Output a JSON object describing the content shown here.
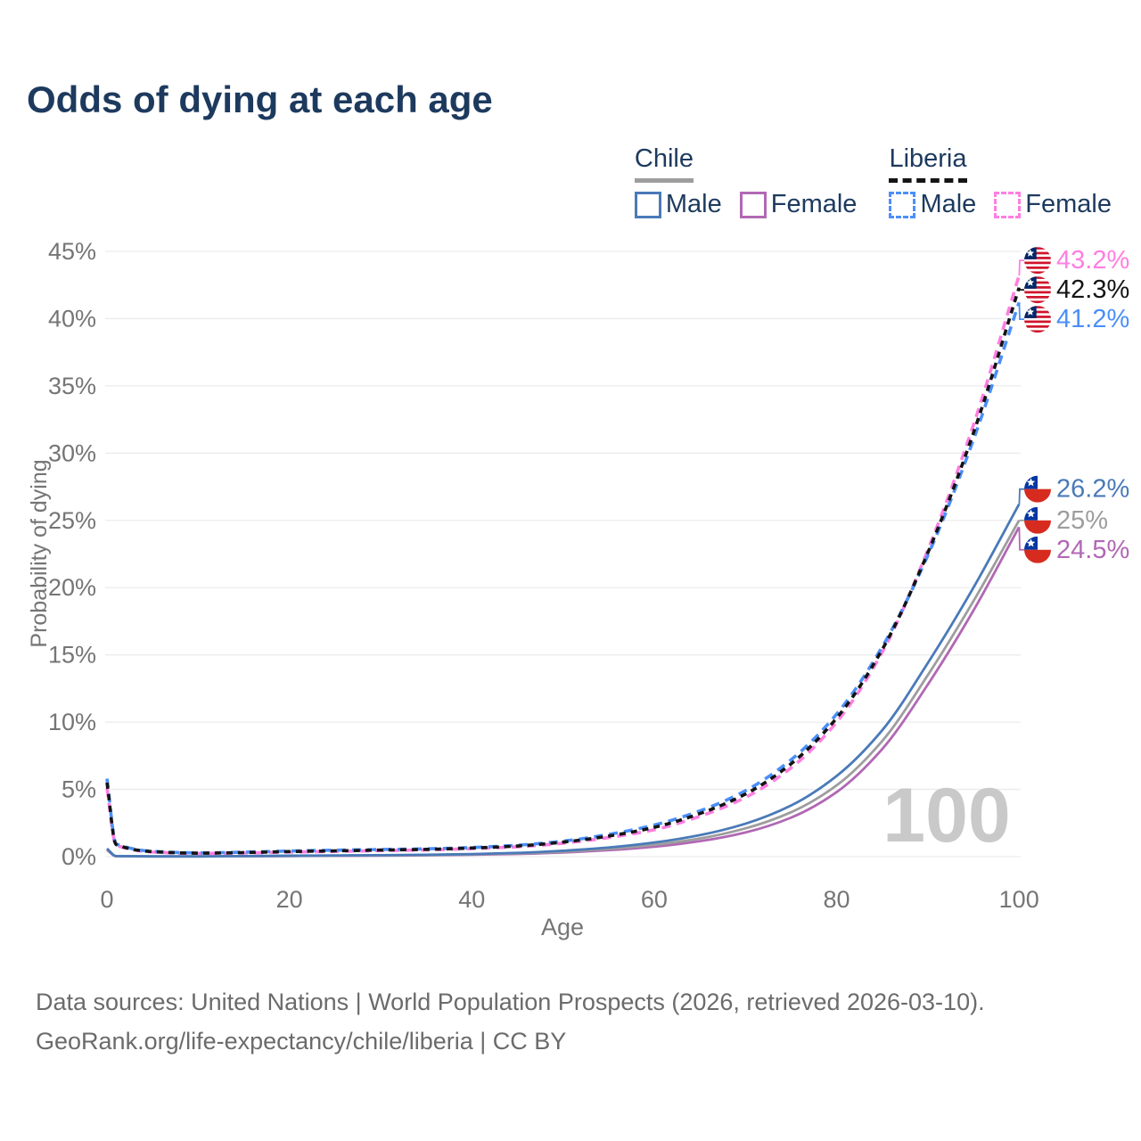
{
  "header": {
    "title": "Odds of dying at each age"
  },
  "legend": {
    "groups": [
      {
        "id": "chile",
        "label": "Chile",
        "line_style": "solid",
        "underline_color": "#9d9d9d",
        "items": [
          {
            "label": "Male",
            "color": "#4a7ab8",
            "dash": false
          },
          {
            "label": "Female",
            "color": "#b168b4",
            "dash": false
          }
        ]
      },
      {
        "id": "liberia",
        "label": "Liberia",
        "line_style": "dashed",
        "underline_color": "#141414",
        "items": [
          {
            "label": "Male",
            "color": "#4b8ff7",
            "dash": true
          },
          {
            "label": "Female",
            "color": "#ff7ee2",
            "dash": true
          }
        ]
      }
    ]
  },
  "chart_data": {
    "type": "line",
    "title": "Odds of dying at each age",
    "xlabel": "Age",
    "ylabel": "Probability of dying",
    "xlim": [
      0,
      100
    ],
    "ylim": [
      0,
      45
    ],
    "x_ticks": [
      0,
      20,
      40,
      60,
      80,
      100
    ],
    "y_ticks": [
      0,
      5,
      10,
      15,
      20,
      25,
      30,
      35,
      40,
      45
    ],
    "y_tick_suffix": "%",
    "grid": "horizontal",
    "legend_position": "top-right",
    "watermark": "100",
    "ages": [
      0,
      1,
      5,
      10,
      15,
      20,
      25,
      30,
      35,
      40,
      45,
      50,
      55,
      60,
      65,
      70,
      75,
      80,
      85,
      90,
      95,
      100
    ],
    "series": [
      {
        "name": "Chile Female",
        "country": "chile",
        "sex": "female",
        "color": "#b168b4",
        "dash": false,
        "end_label": "24.5%",
        "values": [
          0.5,
          0.03,
          0.015,
          0.015,
          0.03,
          0.045,
          0.06,
          0.08,
          0.105,
          0.14,
          0.2,
          0.31,
          0.48,
          0.74,
          1.15,
          1.8,
          2.9,
          4.8,
          8.0,
          12.8,
          18.3,
          24.5
        ]
      },
      {
        "name": "Chile Both sexes",
        "country": "chile",
        "sex": "both",
        "color": "#9d9d9d",
        "dash": false,
        "end_label": "25%",
        "values": [
          0.55,
          0.035,
          0.018,
          0.018,
          0.035,
          0.055,
          0.072,
          0.092,
          0.12,
          0.165,
          0.24,
          0.37,
          0.57,
          0.88,
          1.35,
          2.1,
          3.3,
          5.3,
          8.6,
          13.5,
          19.0,
          25.0
        ]
      },
      {
        "name": "Chile Male",
        "country": "chile",
        "sex": "male",
        "color": "#4a7ab8",
        "dash": false,
        "end_label": "26.2%",
        "values": [
          0.6,
          0.04,
          0.02,
          0.02,
          0.04,
          0.07,
          0.09,
          0.11,
          0.14,
          0.19,
          0.28,
          0.44,
          0.68,
          1.05,
          1.6,
          2.45,
          3.8,
          6.0,
          9.4,
          14.4,
          20.0,
          26.2
        ]
      },
      {
        "name": "Liberia Female",
        "country": "liberia",
        "sex": "female",
        "color": "#ff7ee2",
        "dash": true,
        "end_label": "43.2%",
        "values": [
          5.1,
          0.85,
          0.34,
          0.24,
          0.27,
          0.34,
          0.39,
          0.45,
          0.5,
          0.6,
          0.73,
          1.0,
          1.42,
          2.0,
          3.0,
          4.4,
          6.6,
          10.0,
          15.2,
          22.8,
          32.1,
          43.2
        ]
      },
      {
        "name": "Liberia Male",
        "country": "liberia",
        "sex": "male",
        "color": "#4b8ff7",
        "dash": true,
        "end_label": "41.2%",
        "values": [
          5.8,
          0.95,
          0.4,
          0.28,
          0.33,
          0.42,
          0.48,
          0.53,
          0.58,
          0.68,
          0.85,
          1.15,
          1.65,
          2.35,
          3.4,
          4.9,
          7.2,
          10.6,
          15.6,
          22.4,
          31.0,
          41.2
        ]
      },
      {
        "name": "Liberia Both sexes",
        "country": "liberia",
        "sex": "both",
        "color": "#141414",
        "dash": true,
        "end_label": "42.3%",
        "values": [
          5.5,
          0.9,
          0.37,
          0.26,
          0.3,
          0.38,
          0.43,
          0.49,
          0.54,
          0.64,
          0.79,
          1.08,
          1.53,
          2.18,
          3.2,
          4.65,
          6.9,
          10.3,
          15.4,
          22.6,
          31.5,
          42.3
        ]
      }
    ],
    "flag_colors": {
      "liberia": {
        "red": "#cf142b",
        "blue": "#002868",
        "white": "#ffffff"
      },
      "chile": {
        "red": "#d72b1f",
        "blue": "#0437a3",
        "white": "#ffffff"
      }
    },
    "colors": {
      "grid": "#ececec",
      "axis_text": "#757575",
      "watermark": "#c9c9c9",
      "title_text": "#1d3a5e"
    }
  },
  "footer": {
    "line1": "Data sources: United Nations | World Population Prospects (2026, retrieved 2026-03-10).",
    "line2": "GeoRank.org/life-expectancy/chile/liberia | CC BY"
  }
}
